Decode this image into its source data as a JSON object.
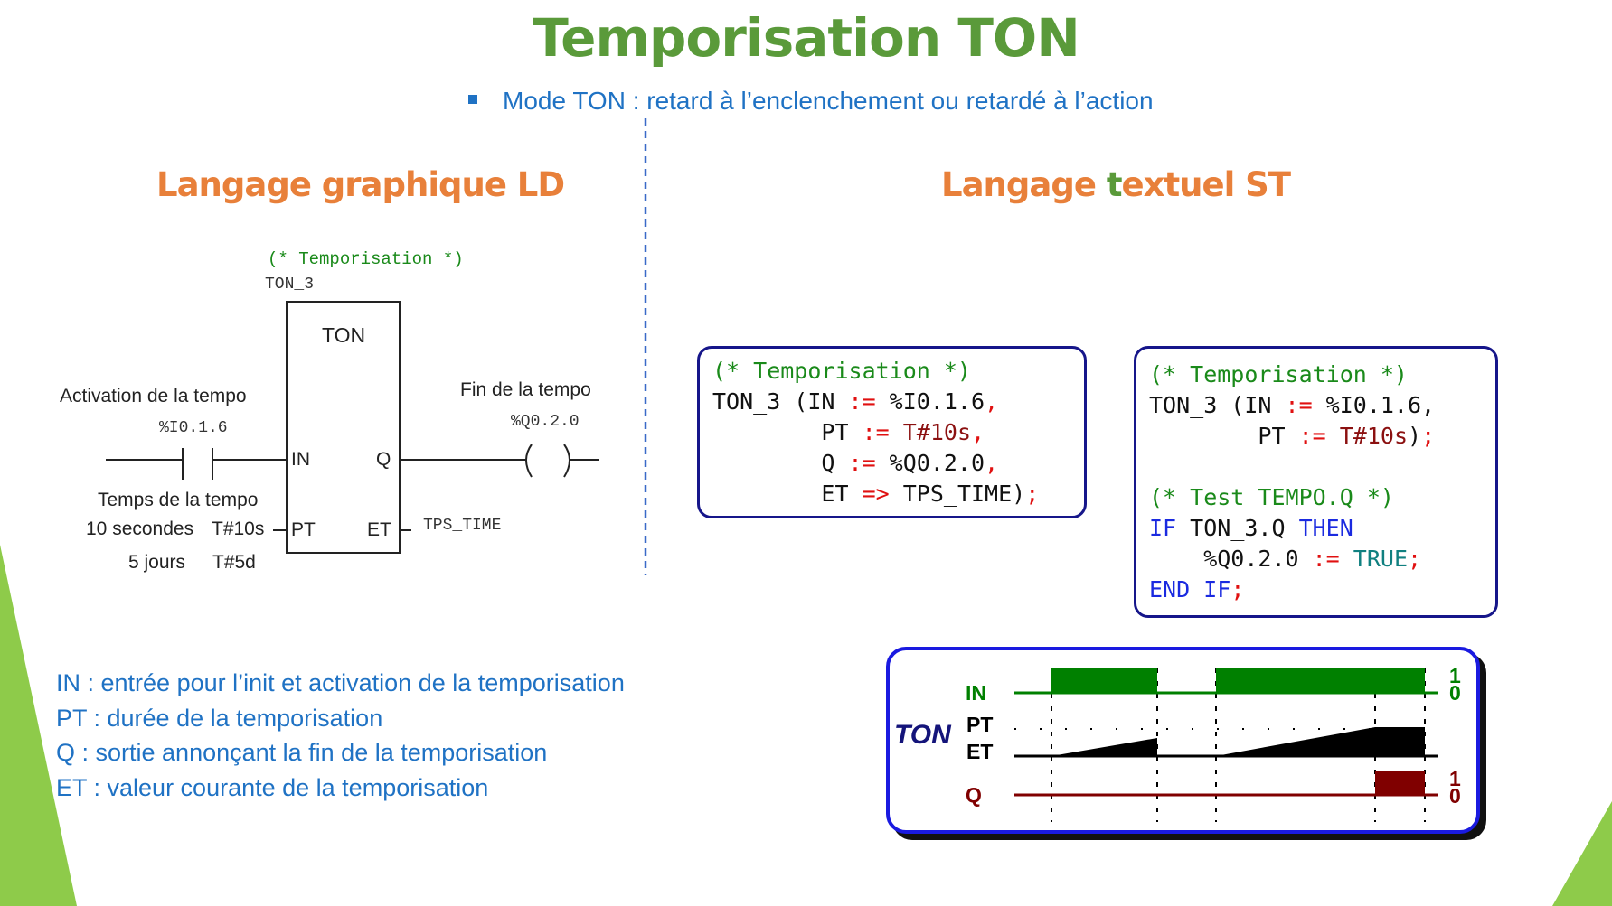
{
  "title": "Temporisation TON",
  "subtitle": "Mode TON  : retard à l’enclenchement ou retardé à l’action",
  "sections": {
    "ld": "Langage graphique LD",
    "st_prefix": "Langage ",
    "st_t": "t",
    "st_rest": "extuel ST"
  },
  "ld": {
    "comment": "(* Temporisation *)",
    "instance": "TON_3",
    "block": "TON",
    "pin_in": "IN",
    "pin_q": "Q",
    "pin_pt": "PT",
    "pin_et": "ET",
    "activation_label": "Activation de la tempo",
    "input_addr": "%I0.1.6",
    "end_label": "Fin de la tempo",
    "output_addr": "%Q0.2.0",
    "time_label": "Temps de la tempo",
    "ten_seconds": "10 secondes",
    "pt_value": "T#10s",
    "five_days": "5 jours",
    "pt_value2": "T#5d",
    "et_var": "TPS_TIME"
  },
  "code1": [
    [
      [
        "comment",
        "(* Temporisation *)"
      ]
    ],
    [
      [
        "plain",
        "TON_3 (IN "
      ],
      [
        "op",
        ":="
      ],
      [
        "plain",
        " %I0.1.6"
      ],
      [
        "op",
        ","
      ]
    ],
    [
      [
        "plain",
        "        PT "
      ],
      [
        "op",
        ":="
      ],
      [
        "val",
        " T#10s"
      ],
      [
        "op",
        ","
      ]
    ],
    [
      [
        "plain",
        "        Q "
      ],
      [
        "op",
        ":="
      ],
      [
        "plain",
        " %Q0.2.0"
      ],
      [
        "op",
        ","
      ]
    ],
    [
      [
        "plain",
        "        ET "
      ],
      [
        "op",
        "=>"
      ],
      [
        "plain",
        " TPS_TIME)"
      ],
      [
        "op",
        ";"
      ]
    ]
  ],
  "code2": [
    [
      [
        "comment",
        "(* Temporisation *)"
      ]
    ],
    [
      [
        "plain",
        "TON_3 (IN "
      ],
      [
        "op",
        ":="
      ],
      [
        "plain",
        " %I0.1.6,"
      ]
    ],
    [
      [
        "plain",
        "        PT "
      ],
      [
        "op",
        ":="
      ],
      [
        "val",
        " T#10s"
      ],
      [
        "plain",
        ")"
      ],
      [
        "op",
        ";"
      ]
    ],
    [
      [
        "plain",
        " "
      ]
    ],
    [
      [
        "comment",
        "(* Test TEMPO.Q *)"
      ]
    ],
    [
      [
        "kw",
        "IF"
      ],
      [
        "plain",
        " TON_3.Q "
      ],
      [
        "kw",
        "THEN"
      ]
    ],
    [
      [
        "plain",
        "    %Q0.2.0 "
      ],
      [
        "op",
        ":="
      ],
      [
        "bool",
        " TRUE"
      ],
      [
        "op",
        ";"
      ]
    ],
    [
      [
        "kw",
        "END_IF"
      ],
      [
        "op",
        ";"
      ]
    ]
  ],
  "legend": [
    "IN : entrée pour l’init et activation de la temporisation",
    "PT : durée de la temporisation",
    "Q : sortie  annonçant la fin de la temporisation",
    "ET : valeur courante de la temporisation"
  ],
  "timing": {
    "name": "TON",
    "in": "IN",
    "pt": "PT",
    "et": "ET",
    "q": "Q",
    "one": "1",
    "zero": "0",
    "colors": {
      "in": "#008000",
      "et": "#000000",
      "q": "#800000",
      "name": "#14147a"
    }
  },
  "colors": {
    "title": "#5a9a3a",
    "section": "#e8803a",
    "accent": "#1f72c4",
    "code_border": "#16168a"
  }
}
